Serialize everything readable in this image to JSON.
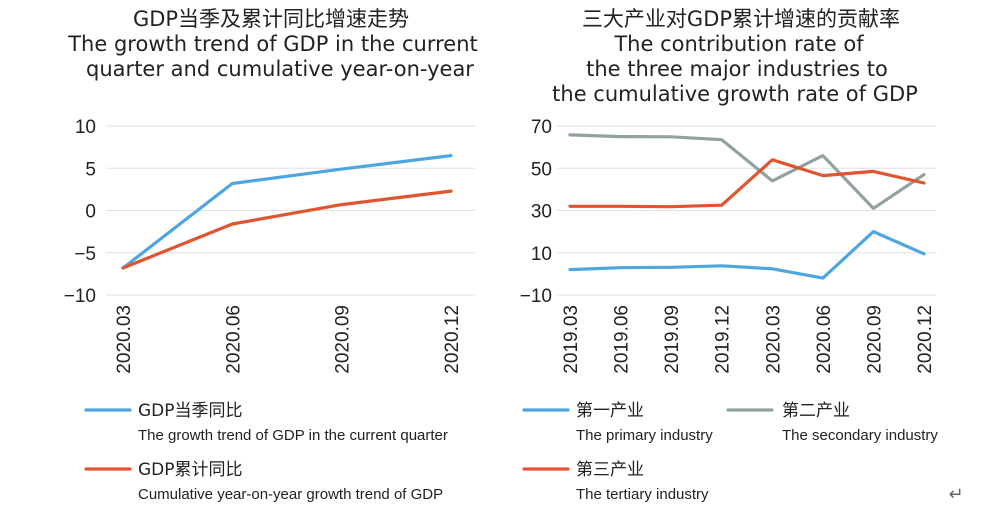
{
  "colors": {
    "blue": "#4ea6e0",
    "gray": "#92a2a1",
    "orange": "#e0552f",
    "grid": "#e2e2e2"
  },
  "return_glyph": "↵",
  "chart_data": [
    {
      "type": "line",
      "title": [
        "GDP当季及累计同比增速走势",
        "The growth trend of GDP in the current",
        "quarter and cumulative year-on-year"
      ],
      "categories": [
        "2020.03",
        "2020.06",
        "2020.09",
        "2020.12"
      ],
      "ylim": [
        -10,
        10
      ],
      "yticks": [
        10,
        5,
        0,
        -5,
        -10
      ],
      "ytick_labels": [
        "10",
        "5",
        "0",
        "−5",
        "−10"
      ],
      "series": [
        {
          "name_zh": "GDP当季同比",
          "name_en": "The growth trend of GDP in the current quarter",
          "color": "#4ea6e0",
          "values": [
            -6.8,
            3.2,
            4.9,
            6.5
          ]
        },
        {
          "name_zh": "GDP累计同比",
          "name_en": "Cumulative year-on-year growth trend of GDP",
          "color": "#e0552f",
          "values": [
            -6.8,
            -1.6,
            0.7,
            2.3
          ]
        }
      ]
    },
    {
      "type": "line",
      "title": [
        "三大产业对GDP累计增速的贡献率",
        "The contribution rate of",
        "the three major industries to",
        "the cumulative growth rate of GDP"
      ],
      "categories": [
        "2019.03",
        "2019.06",
        "2019.09",
        "2019.12",
        "2020.03",
        "2020.06",
        "2020.09",
        "2020.12"
      ],
      "ylim": [
        -10,
        70
      ],
      "yticks": [
        70,
        50,
        30,
        10,
        -10
      ],
      "ytick_labels": [
        "70",
        "50",
        "30",
        "10",
        "−10"
      ],
      "series": [
        {
          "name_zh": "第一产业",
          "name_en": "The primary industry",
          "color": "#4ea6e0",
          "values": [
            2.0,
            2.9,
            3.1,
            3.8,
            2.4,
            -2.0,
            20.0,
            9.5
          ]
        },
        {
          "name_zh": "第二产业",
          "name_en": "The secondary industry",
          "color": "#92a2a1",
          "values": [
            65.8,
            65.0,
            64.9,
            63.5,
            44.0,
            56.0,
            31.0,
            47.0
          ]
        },
        {
          "name_zh": "第三产业",
          "name_en": "The tertiary industry",
          "color": "#e0552f",
          "values": [
            32.0,
            32.0,
            31.8,
            32.5,
            54.0,
            46.5,
            48.5,
            43.0
          ]
        }
      ]
    }
  ]
}
